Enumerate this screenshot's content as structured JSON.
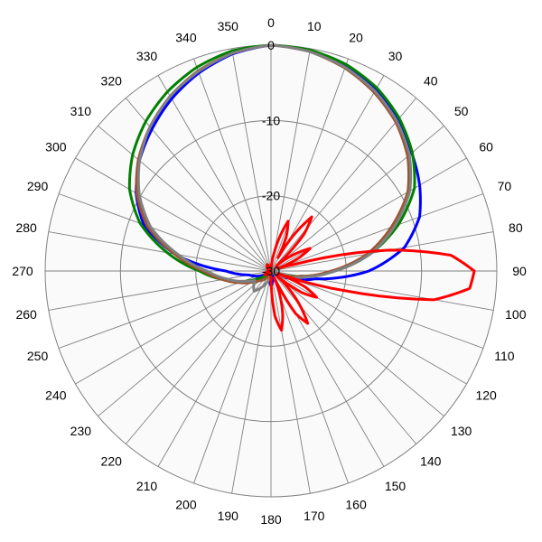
{
  "chart_data": {
    "type": "polar-line",
    "title": "",
    "angle_unit": "degrees",
    "angle_direction": "clockwise",
    "zero_at": "top",
    "angle_tick_step": 10,
    "angle_tick_labels": [
      "0",
      "10",
      "20",
      "30",
      "40",
      "50",
      "60",
      "70",
      "80",
      "90",
      "100",
      "110",
      "120",
      "130",
      "140",
      "150",
      "160",
      "170",
      "180",
      "190",
      "200",
      "210",
      "220",
      "230",
      "240",
      "250",
      "260",
      "270",
      "280",
      "290",
      "300",
      "310",
      "320",
      "330",
      "340",
      "350"
    ],
    "radial_range": [
      -30,
      0
    ],
    "radial_ticks": [
      0,
      -10,
      -20,
      -30
    ],
    "radial_tick_labels": [
      "0",
      "-10",
      "-20",
      "-30"
    ],
    "grid": true,
    "legend": "none",
    "series": [
      {
        "color": "#0000FF",
        "points": [
          [
            0,
            0
          ],
          [
            10,
            -0.3
          ],
          [
            20,
            -1.0
          ],
          [
            30,
            -2.2
          ],
          [
            40,
            -3.8
          ],
          [
            50,
            -5.6
          ],
          [
            60,
            -7.2
          ],
          [
            70,
            -9.0
          ],
          [
            80,
            -12.0
          ],
          [
            90,
            -17.0
          ],
          [
            100,
            -24.0
          ],
          [
            110,
            -27.0
          ],
          [
            120,
            -29.0
          ],
          [
            150,
            -30.0
          ],
          [
            180,
            -28.0
          ],
          [
            190,
            -29.0
          ],
          [
            200,
            -30.0
          ],
          [
            240,
            -29.0
          ],
          [
            250,
            -28.0
          ],
          [
            260,
            -27.0
          ],
          [
            270,
            -24.0
          ],
          [
            280,
            -17.0
          ],
          [
            290,
            -12.0
          ],
          [
            300,
            -9.3
          ],
          [
            310,
            -7.2
          ],
          [
            320,
            -5.4
          ],
          [
            330,
            -3.6
          ],
          [
            340,
            -2.0
          ],
          [
            350,
            -0.7
          ],
          [
            360,
            0
          ]
        ]
      },
      {
        "color": "#008000",
        "points": [
          [
            0,
            0
          ],
          [
            10,
            -0.2
          ],
          [
            20,
            -0.8
          ],
          [
            30,
            -1.9
          ],
          [
            40,
            -3.5
          ],
          [
            50,
            -5.5
          ],
          [
            60,
            -8.0
          ],
          [
            70,
            -12.0
          ],
          [
            80,
            -16.5
          ],
          [
            90,
            -21.5
          ],
          [
            100,
            -26.0
          ],
          [
            110,
            -28.5
          ],
          [
            130,
            -30.0
          ],
          [
            180,
            -29.5
          ],
          [
            200,
            -30.0
          ],
          [
            230,
            -29.0
          ],
          [
            240,
            -28.0
          ],
          [
            250,
            -26.0
          ],
          [
            260,
            -23.5
          ],
          [
            270,
            -20.5
          ],
          [
            280,
            -16.0
          ],
          [
            290,
            -11.5
          ],
          [
            300,
            -8.3
          ],
          [
            310,
            -6.0
          ],
          [
            320,
            -4.1
          ],
          [
            330,
            -2.5
          ],
          [
            340,
            -1.2
          ],
          [
            350,
            -0.3
          ],
          [
            360,
            0
          ]
        ]
      },
      {
        "color": "#A0522D",
        "points": [
          [
            0,
            0
          ],
          [
            10,
            -0.4
          ],
          [
            20,
            -1.3
          ],
          [
            30,
            -2.6
          ],
          [
            40,
            -4.2
          ],
          [
            50,
            -6.3
          ],
          [
            60,
            -9.0
          ],
          [
            70,
            -13.0
          ],
          [
            80,
            -17.0
          ],
          [
            90,
            -22.0
          ],
          [
            100,
            -26.0
          ],
          [
            110,
            -28.0
          ],
          [
            130,
            -30.0
          ],
          [
            180,
            -30.0
          ],
          [
            210,
            -29.0
          ],
          [
            230,
            -28.0
          ],
          [
            240,
            -27.0
          ],
          [
            250,
            -25.5
          ],
          [
            260,
            -23.5
          ],
          [
            270,
            -21.0
          ],
          [
            280,
            -17.0
          ],
          [
            290,
            -12.5
          ],
          [
            300,
            -9.4
          ],
          [
            310,
            -7.0
          ],
          [
            320,
            -5.0
          ],
          [
            330,
            -3.2
          ],
          [
            340,
            -1.7
          ],
          [
            350,
            -0.6
          ],
          [
            360,
            0
          ]
        ]
      },
      {
        "color": "#808080",
        "points": [
          [
            0,
            0
          ],
          [
            10,
            -0.4
          ],
          [
            20,
            -1.2
          ],
          [
            30,
            -2.4
          ],
          [
            40,
            -4.0
          ],
          [
            50,
            -6.0
          ],
          [
            60,
            -8.7
          ],
          [
            70,
            -12.5
          ],
          [
            80,
            -16.5
          ],
          [
            90,
            -21.5
          ],
          [
            100,
            -25.5
          ],
          [
            110,
            -27.5
          ],
          [
            130,
            -30.0
          ],
          [
            180,
            -30.0
          ],
          [
            210,
            -27.5
          ],
          [
            220,
            -26.5
          ],
          [
            240,
            -27.5
          ],
          [
            250,
            -26.0
          ],
          [
            260,
            -24.0
          ],
          [
            270,
            -21.5
          ],
          [
            280,
            -17.5
          ],
          [
            290,
            -13.0
          ],
          [
            300,
            -9.8
          ],
          [
            310,
            -7.2
          ],
          [
            320,
            -5.0
          ],
          [
            330,
            -3.2
          ],
          [
            340,
            -1.8
          ],
          [
            350,
            -0.6
          ],
          [
            360,
            0
          ]
        ]
      },
      {
        "color": "#FF0000",
        "points": [
          [
            0,
            -30
          ],
          [
            5,
            -29
          ],
          [
            10,
            -27.5
          ],
          [
            15,
            -25
          ],
          [
            19,
            -23
          ],
          [
            24,
            -25
          ],
          [
            28,
            -28
          ],
          [
            32,
            -24.5
          ],
          [
            37,
            -21
          ],
          [
            42,
            -23.5
          ],
          [
            47,
            -29
          ],
          [
            55,
            -26
          ],
          [
            60,
            -24
          ],
          [
            65,
            -26
          ],
          [
            70,
            -29
          ],
          [
            74,
            -27
          ],
          [
            80,
            -14
          ],
          [
            85,
            -6
          ],
          [
            90,
            -3
          ],
          [
            95,
            -3.5
          ],
          [
            100,
            -8
          ],
          [
            105,
            -20
          ],
          [
            110,
            -29
          ],
          [
            115,
            -25
          ],
          [
            120,
            -23
          ],
          [
            125,
            -25
          ],
          [
            130,
            -29
          ],
          [
            140,
            -24
          ],
          [
            145,
            -21.5
          ],
          [
            150,
            -23.5
          ],
          [
            155,
            -29
          ],
          [
            165,
            -24
          ],
          [
            170,
            -22
          ],
          [
            175,
            -24
          ],
          [
            180,
            -29
          ],
          [
            190,
            -30
          ],
          [
            200,
            -29.5
          ],
          [
            210,
            -30
          ],
          [
            240,
            -29
          ],
          [
            260,
            -29.5
          ],
          [
            270,
            -30
          ],
          [
            300,
            -29.5
          ],
          [
            330,
            -29
          ],
          [
            345,
            -29.5
          ],
          [
            360,
            -30
          ]
        ]
      }
    ]
  }
}
